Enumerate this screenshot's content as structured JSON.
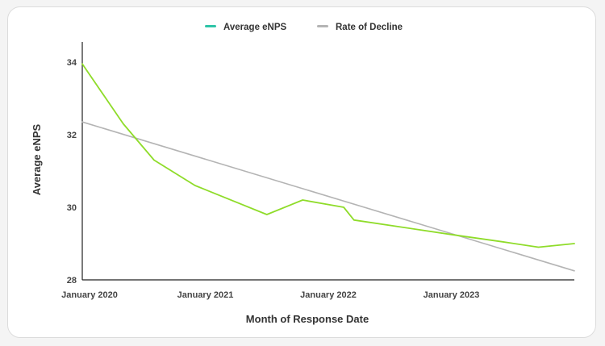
{
  "chart_data": {
    "type": "line",
    "xlabel": "Month of Response Date",
    "ylabel": "Average eNPS",
    "ylim": [
      28,
      34.6
    ],
    "yticks": [
      34,
      32,
      30,
      28
    ],
    "xticks": [
      {
        "label": "January 2020",
        "t": 0
      },
      {
        "label": "January 2021",
        "t": 12
      },
      {
        "label": "January 2022",
        "t": 24
      },
      {
        "label": "January 2023",
        "t": 36
      }
    ],
    "xlim": [
      0,
      48
    ],
    "legend_position": "top-center",
    "series": [
      {
        "name": "Average eNPS",
        "color": "#8fdc2a",
        "legend_color": "#2ec4a7",
        "points": [
          {
            "t": 0,
            "y": 33.95
          },
          {
            "t": 4,
            "y": 32.3
          },
          {
            "t": 7,
            "y": 31.3
          },
          {
            "t": 11,
            "y": 30.6
          },
          {
            "t": 18,
            "y": 29.8
          },
          {
            "t": 21.5,
            "y": 30.2
          },
          {
            "t": 25.5,
            "y": 30.0
          },
          {
            "t": 26.5,
            "y": 29.65
          },
          {
            "t": 36,
            "y": 29.25
          },
          {
            "t": 41,
            "y": 29.05
          },
          {
            "t": 44.5,
            "y": 28.9
          },
          {
            "t": 48,
            "y": 29.0
          }
        ]
      },
      {
        "name": "Rate of Decline",
        "color": "#b4b4b4",
        "legend_color": "#b4b4b4",
        "points": [
          {
            "t": 0,
            "y": 32.35
          },
          {
            "t": 48,
            "y": 28.25
          }
        ]
      }
    ]
  }
}
